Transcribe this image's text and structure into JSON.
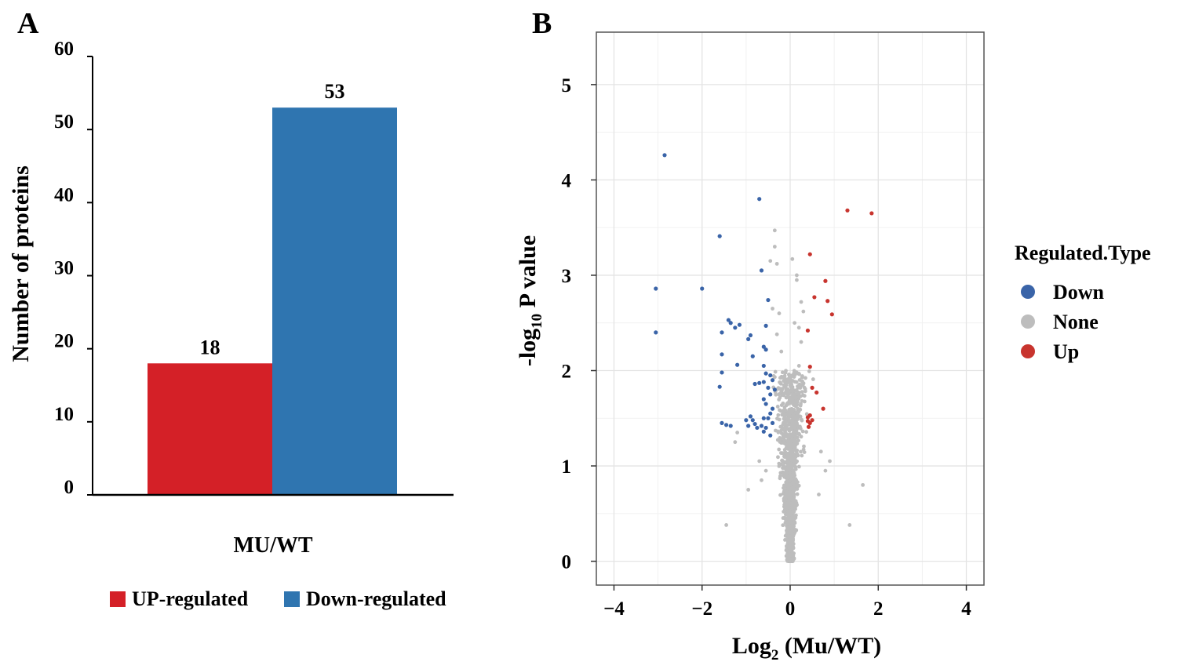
{
  "panel_a_label": "A",
  "panel_b_label": "B",
  "chart_data": [
    {
      "type": "bar",
      "title": "",
      "xlabel": "MU/WT",
      "ylabel": "Number of proteins",
      "ylim": [
        0,
        60
      ],
      "yticks": [
        "0",
        "10",
        "20",
        "30",
        "40",
        "50",
        "60"
      ],
      "categories": [
        "MU/WT"
      ],
      "series": [
        {
          "name": "UP-regulated",
          "values": [
            18
          ],
          "label": "18",
          "color": "#d42027"
        },
        {
          "name": "Down-regulated",
          "values": [
            53
          ],
          "label": "53",
          "color": "#2f75b0"
        }
      ],
      "legend_position": "bottom"
    },
    {
      "type": "scatter",
      "title": "",
      "xlabel_main": "Log",
      "xlabel_sub": "2",
      "xlabel_rest": " (Mu/WT)",
      "ylabel_main": "-log",
      "ylabel_sub": "10",
      "ylabel_rest": " P value",
      "xlim": [
        -4.4,
        4.4
      ],
      "ylim": [
        -0.25,
        5.55
      ],
      "xticks": [
        -4,
        -2,
        0,
        2,
        4
      ],
      "xtick_labels": [
        "−4",
        "−2",
        "0",
        "2",
        "4"
      ],
      "yticks": [
        0,
        1,
        2,
        3,
        4,
        5
      ],
      "ytick_labels": [
        "0",
        "1",
        "2",
        "3",
        "4",
        "5"
      ],
      "grid": true,
      "legend_title": "Regulated.Type",
      "legend_position": "right",
      "series": [
        {
          "name": "Down",
          "color": "#3a64a8",
          "points": [
            [
              -2.85,
              4.26
            ],
            [
              -0.7,
              3.8
            ],
            [
              -1.6,
              3.41
            ],
            [
              -0.65,
              3.05
            ],
            [
              -3.05,
              2.86
            ],
            [
              -2.0,
              2.86
            ],
            [
              -0.5,
              2.74
            ],
            [
              -1.4,
              2.53
            ],
            [
              -1.35,
              2.5
            ],
            [
              -1.15,
              2.48
            ],
            [
              -0.55,
              2.47
            ],
            [
              -1.25,
              2.45
            ],
            [
              -1.55,
              2.4
            ],
            [
              -3.05,
              2.4
            ],
            [
              -0.9,
              2.37
            ],
            [
              -0.95,
              2.33
            ],
            [
              -0.6,
              2.25
            ],
            [
              -0.55,
              2.22
            ],
            [
              -1.55,
              2.17
            ],
            [
              -0.85,
              2.15
            ],
            [
              -1.2,
              2.06
            ],
            [
              -0.6,
              2.05
            ],
            [
              -1.55,
              1.98
            ],
            [
              -0.55,
              1.97
            ],
            [
              -0.45,
              1.95
            ],
            [
              -0.4,
              1.9
            ],
            [
              -0.7,
              1.87
            ],
            [
              -0.6,
              1.88
            ],
            [
              -0.8,
              1.86
            ],
            [
              -1.6,
              1.83
            ],
            [
              -0.5,
              1.82
            ],
            [
              -0.35,
              1.8
            ],
            [
              -0.45,
              1.75
            ],
            [
              -0.6,
              1.7
            ],
            [
              -0.55,
              1.65
            ],
            [
              -0.4,
              1.6
            ],
            [
              -0.45,
              1.55
            ],
            [
              -0.9,
              1.52
            ],
            [
              -0.5,
              1.5
            ],
            [
              -1.0,
              1.48
            ],
            [
              -0.85,
              1.48
            ],
            [
              -0.6,
              1.5
            ],
            [
              -0.8,
              1.44
            ],
            [
              -1.45,
              1.43
            ],
            [
              -1.35,
              1.42
            ],
            [
              -0.65,
              1.42
            ],
            [
              -0.75,
              1.4
            ],
            [
              -0.55,
              1.4
            ],
            [
              -0.6,
              1.36
            ],
            [
              -0.45,
              1.32
            ],
            [
              -1.55,
              1.45
            ],
            [
              -0.4,
              1.45
            ],
            [
              -0.95,
              1.42
            ]
          ]
        },
        {
          "name": "Up",
          "color": "#c8342e",
          "points": [
            [
              1.3,
              3.68
            ],
            [
              1.85,
              3.65
            ],
            [
              0.45,
              3.22
            ],
            [
              0.8,
              2.94
            ],
            [
              0.55,
              2.77
            ],
            [
              0.85,
              2.73
            ],
            [
              0.95,
              2.59
            ],
            [
              0.4,
              2.42
            ],
            [
              0.45,
              2.04
            ],
            [
              0.5,
              1.82
            ],
            [
              0.6,
              1.77
            ],
            [
              0.75,
              1.6
            ],
            [
              0.45,
              1.53
            ],
            [
              0.4,
              1.51
            ],
            [
              0.45,
              1.45
            ],
            [
              0.42,
              1.41
            ],
            [
              0.4,
              1.47
            ],
            [
              0.5,
              1.48
            ]
          ]
        },
        {
          "name": "None",
          "color": "#bdbdbd",
          "points_note": "generated cloud"
        }
      ]
    }
  ],
  "none_points": [
    [
      -0.35,
      3.47
    ],
    [
      -0.35,
      3.3
    ],
    [
      0.05,
      3.17
    ],
    [
      -0.45,
      3.15
    ],
    [
      -0.3,
      3.12
    ],
    [
      0.15,
      2.95
    ],
    [
      0.25,
      2.72
    ],
    [
      0.3,
      2.62
    ],
    [
      -0.25,
      2.6
    ],
    [
      0.2,
      2.45
    ],
    [
      -0.3,
      2.38
    ],
    [
      0.25,
      2.3
    ],
    [
      -0.2,
      2.2
    ],
    [
      0.2,
      2.05
    ],
    [
      -1.2,
      1.35
    ],
    [
      -1.25,
      1.25
    ],
    [
      -1.45,
      0.38
    ],
    [
      1.65,
      0.8
    ],
    [
      1.35,
      0.38
    ],
    [
      -0.55,
      0.95
    ],
    [
      -0.65,
      0.85
    ],
    [
      0.7,
      1.15
    ],
    [
      0.8,
      0.95
    ],
    [
      -0.95,
      0.75
    ],
    [
      0.9,
      1.05
    ],
    [
      -0.7,
      1.05
    ],
    [
      0.65,
      0.7
    ],
    [
      -0.4,
      2.65
    ],
    [
      0.15,
      3.0
    ],
    [
      0.1,
      2.5
    ]
  ]
}
